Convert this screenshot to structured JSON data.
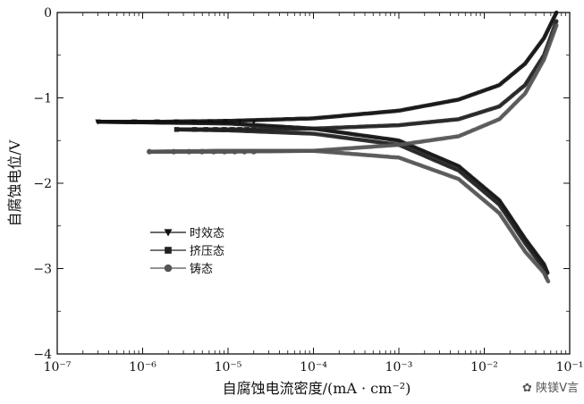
{
  "chart_data": {
    "type": "line",
    "title": "",
    "xlabel": "自腐蚀电流密度/(mA · cm⁻²)",
    "ylabel": "自腐蚀电位/V",
    "xscale": "log",
    "xlim": [
      1e-07,
      0.1
    ],
    "ylim": [
      -4,
      0
    ],
    "x_ticks": [
      "10⁻⁷",
      "10⁻⁶",
      "10⁻⁵",
      "10⁻⁴",
      "10⁻³",
      "10⁻²",
      "10⁻¹"
    ],
    "y_ticks": [
      "0",
      "−1",
      "−2",
      "−3",
      "−4"
    ],
    "legend_position": "left-middle",
    "grid": false,
    "series": [
      {
        "name": "时效态",
        "color": "#111111",
        "marker": "triangle-down",
        "ecorr": -1.28,
        "anodic": {
          "x": [
            3e-07,
            6e-07,
            1.5e-06,
            1e-05,
            0.0001,
            0.001,
            0.005,
            0.015,
            0.03,
            0.05,
            0.07
          ],
          "y": [
            -1.28,
            -1.28,
            -1.28,
            -1.27,
            -1.24,
            -1.15,
            -1.02,
            -0.85,
            -0.6,
            -0.3,
            0.0
          ]
        },
        "cathodic": {
          "x": [
            3e-07,
            1e-05,
            0.0001,
            0.001,
            0.005,
            0.015,
            0.03,
            0.05,
            0.055
          ],
          "y": [
            -1.28,
            -1.3,
            -1.36,
            -1.5,
            -1.8,
            -2.2,
            -2.65,
            -2.95,
            -3.05
          ]
        }
      },
      {
        "name": "挤压态",
        "color": "#222222",
        "marker": "square",
        "ecorr": -1.37,
        "anodic": {
          "x": [
            2.5e-06,
            5e-06,
            1e-05,
            0.0001,
            0.001,
            0.005,
            0.015,
            0.03,
            0.05,
            0.07
          ],
          "y": [
            -1.37,
            -1.37,
            -1.37,
            -1.36,
            -1.32,
            -1.25,
            -1.1,
            -0.85,
            -0.5,
            -0.1
          ]
        },
        "cathodic": {
          "x": [
            2.5e-06,
            1e-05,
            0.0001,
            0.001,
            0.005,
            0.015,
            0.03,
            0.05,
            0.053
          ],
          "y": [
            -1.37,
            -1.38,
            -1.42,
            -1.55,
            -1.85,
            -2.25,
            -2.7,
            -3.0,
            -3.1
          ]
        }
      },
      {
        "name": "铸态",
        "color": "#555555",
        "marker": "circle",
        "ecorr": -1.63,
        "anodic": {
          "x": [
            1.2e-06,
            1e-05,
            0.0001,
            0.001,
            0.005,
            0.015,
            0.03,
            0.05,
            0.07
          ],
          "y": [
            -1.63,
            -1.63,
            -1.62,
            -1.55,
            -1.45,
            -1.25,
            -0.95,
            -0.55,
            -0.15
          ]
        },
        "cathodic": {
          "x": [
            1.2e-06,
            1e-05,
            0.0001,
            0.001,
            0.005,
            0.015,
            0.03,
            0.05,
            0.056
          ],
          "y": [
            -1.63,
            -1.62,
            -1.62,
            -1.7,
            -1.95,
            -2.35,
            -2.8,
            -3.05,
            -3.15
          ]
        }
      }
    ]
  },
  "watermark": {
    "text": "陕镁V言"
  }
}
